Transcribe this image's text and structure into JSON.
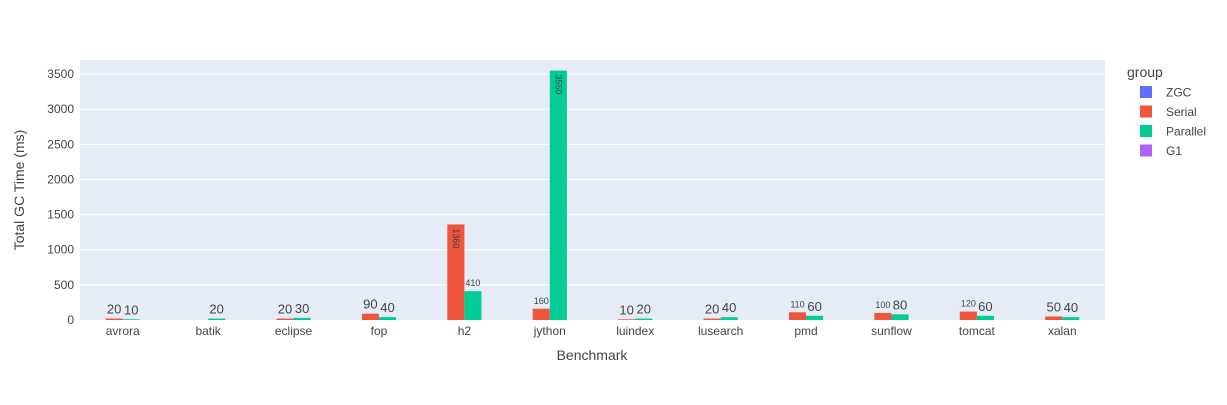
{
  "chart_data": {
    "type": "bar",
    "xlabel": "Benchmark",
    "ylabel": "Total GC Time (ms)",
    "ylim": [
      0,
      3700
    ],
    "yticks": [
      0,
      500,
      1000,
      1500,
      2000,
      2500,
      3000,
      3500
    ],
    "grid": true,
    "legend_title": "group",
    "legend_position": "right",
    "categories": [
      "avrora",
      "batik",
      "eclipse",
      "fop",
      "h2",
      "jython",
      "luindex",
      "lusearch",
      "pmd",
      "sunflow",
      "tomcat",
      "xalan"
    ],
    "series": [
      {
        "name": "ZGC",
        "color": "#636efa",
        "values": [
          null,
          null,
          null,
          null,
          null,
          null,
          null,
          null,
          null,
          null,
          null,
          null
        ]
      },
      {
        "name": "Serial",
        "color": "#ef553b",
        "values": [
          20,
          null,
          20,
          90,
          1360,
          160,
          10,
          20,
          110,
          100,
          120,
          50
        ]
      },
      {
        "name": "Parallel",
        "color": "#00cc96",
        "values": [
          10,
          20,
          30,
          40,
          410,
          3550,
          20,
          40,
          60,
          80,
          60,
          40
        ]
      },
      {
        "name": "G1",
        "color": "#ab63fa",
        "values": [
          null,
          null,
          null,
          null,
          null,
          null,
          null,
          null,
          null,
          null,
          null,
          null
        ]
      }
    ]
  }
}
